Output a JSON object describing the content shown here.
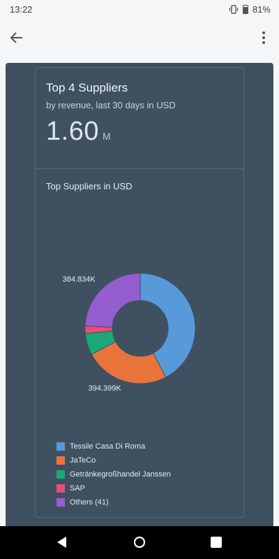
{
  "status": {
    "time": "13:22",
    "battery": "81%"
  },
  "icons": {
    "back": "arrow-left-icon",
    "more": "more-vertical-icon",
    "vibrate": "vibrate-icon",
    "battery": "battery-icon"
  },
  "card": {
    "title": "Top 4 Suppliers",
    "subtitle": "by revenue, last 30 days in USD",
    "kpi_value": "1.60",
    "kpi_unit": "M"
  },
  "chart_data": {
    "type": "pie",
    "title": "Top Suppliers in USD",
    "categories": [
      "Tessile Casa Di Roma",
      "JaTeCo",
      "Getränkegroßhandel Janssen",
      "SAP",
      "Others (41)"
    ],
    "values": [
      670,
      394.399,
      100,
      35,
      384.834
    ],
    "colors": [
      "#5899da",
      "#e8743b",
      "#19a979",
      "#ed4a7b",
      "#945ecf"
    ],
    "data_labels": [
      "",
      "394.399K",
      "",
      "",
      "384.834K"
    ],
    "donut": true,
    "legend_position": "bottom"
  }
}
